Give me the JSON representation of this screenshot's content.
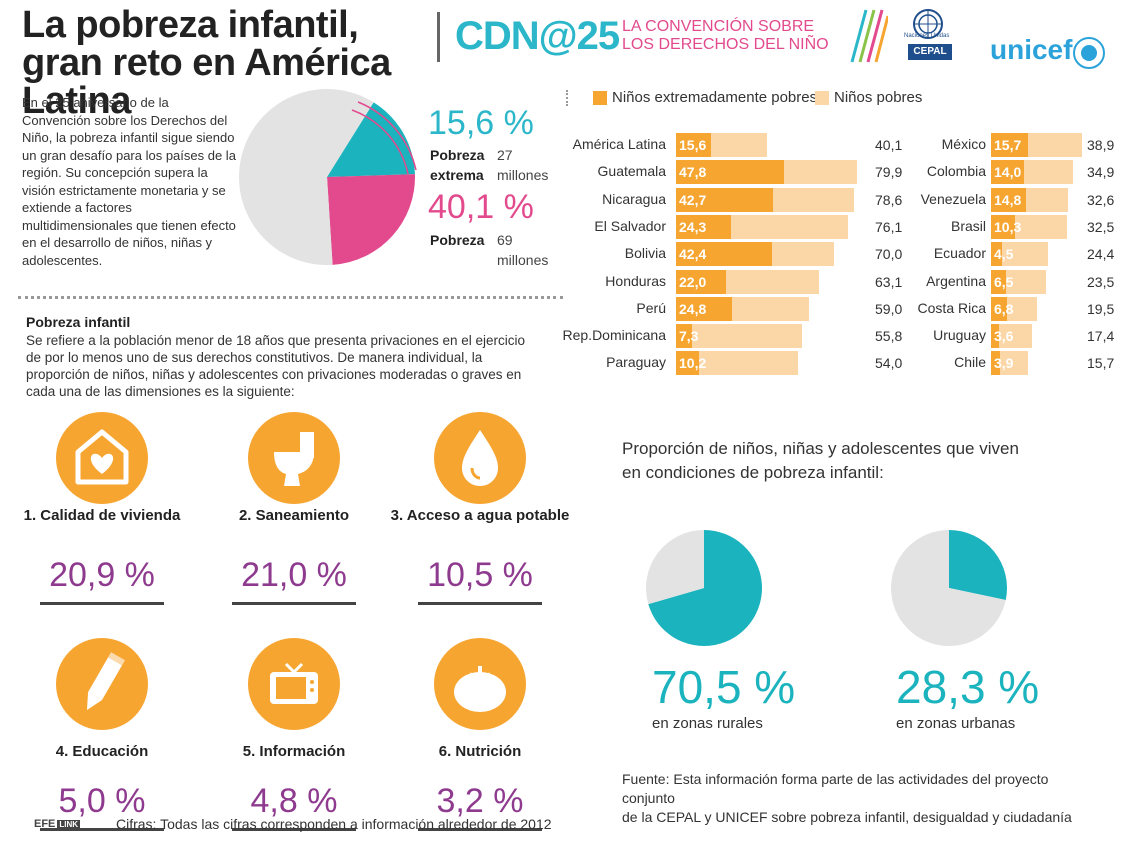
{
  "header": {
    "title": "La pobreza infantil, gran reto en América Latina",
    "cdn_logo": "CDN@25",
    "cdn_subtitle_1": "LA CONVENCIÓN SOBRE",
    "cdn_subtitle_2": "LOS DERECHOS DEL NIÑO",
    "un_small_1": "Naciones Unidas",
    "cepal": "CEPAL",
    "unicef": "unicef"
  },
  "intro": {
    "text": "En el 25 aniversario de la Convención sobre los Derechos del Niño, la pobreza infantil sigue siendo un gran desafío para los países de la región. Su concepción supera la visión estrictamente monetaria y se extiende a factores multidimensionales que tienen efecto en el desarrollo de niños, niñas y adolescentes.",
    "extreme_pct": "15,6 %",
    "extreme_label_1": "Pobreza",
    "extreme_label_2": "extrema",
    "extreme_count_1": "27",
    "extreme_count_2": "millones",
    "poverty_pct": "40,1 %",
    "poverty_label": "Pobreza",
    "poverty_count_1": "69",
    "poverty_count_2": "millones"
  },
  "definition": {
    "title": "Pobreza infantil",
    "text": "Se refiere a la población menor de 18 años que presenta privaciones en el ejercicio de por lo menos uno de sus derechos constitutivos. De manera individual, la proporción de niños, niñas y adolescentes con privaciones moderadas o graves en cada una de las dimensiones es la siguiente:"
  },
  "dimensions": [
    {
      "label": "1. Calidad de vivienda",
      "value": "20,9 %",
      "icon": "house-heart-icon"
    },
    {
      "label": "2. Saneamiento",
      "value": "21,0 %",
      "icon": "toilet-icon"
    },
    {
      "label": "3. Acceso a agua potable",
      "value": "10,5 %",
      "icon": "water-drop-icon"
    },
    {
      "label": "4. Educación",
      "value": "5,0 %",
      "icon": "pencil-icon"
    },
    {
      "label": "5. Información",
      "value": "4,8 %",
      "icon": "tv-icon"
    },
    {
      "label": "6. Nutrición",
      "value": "3,2 %",
      "icon": "tomato-icon"
    }
  ],
  "proportion": {
    "title_1": "Proporción de niños, niñas y adolescentes que viven",
    "title_2": "en condiciones de pobreza infantil:",
    "rural_value": "70,5 %",
    "rural_label": "en zonas rurales",
    "urban_value": "28,3 %",
    "urban_label": "en zonas urbanas"
  },
  "footer": {
    "fuente_1": "Fuente: Esta información forma parte de las actividades del proyecto conjunto",
    "fuente_2": "de la CEPAL y UNICEF sobre pobreza infantil, desigualdad y ciudadanía",
    "efe": "EFE",
    "link": "LINK",
    "cifras": "Cifras: Todas las cifras corresponden a información alrededor de 2012"
  },
  "colors": {
    "orange": "#f6a531",
    "light_orange": "#fbd6a6",
    "teal": "#1bb3bd",
    "pink": "#e24a8d",
    "purple": "#8e3a8e",
    "grey": "#e3e3e3"
  },
  "chart_data": [
    {
      "type": "pie",
      "slices": [
        {
          "name": "Pobreza extrema",
          "value": 15.6,
          "color": "#1bb3bd"
        },
        {
          "name": "Pobreza",
          "value": 24.5,
          "color": "#e24a8d"
        },
        {
          "name": "",
          "value": 59.9,
          "color": "#e3e3e3"
        }
      ]
    },
    {
      "type": "bar",
      "orientation": "horizontal",
      "legend": [
        "Niños extremadamente pobres",
        "Niños pobres"
      ],
      "legend_position": "top",
      "xlim": [
        0,
        80
      ],
      "series_left": {
        "categories": [
          "América Latina",
          "Guatemala",
          "Nicaragua",
          "El Salvador",
          "Bolivia",
          "Honduras",
          "Perú",
          "Rep.Dominicana",
          "Paraguay"
        ],
        "extreme": [
          15.6,
          47.8,
          42.7,
          24.3,
          42.4,
          22.0,
          24.8,
          7.3,
          10.2
        ],
        "extreme_labels": [
          "15,6",
          "47,8",
          "42,7",
          "24,3",
          "42,4",
          "22,0",
          "24,8",
          "7,3",
          "10,2"
        ],
        "poor": [
          40.1,
          79.9,
          78.6,
          76.1,
          70.0,
          63.1,
          59.0,
          55.8,
          54.0
        ],
        "poor_labels": [
          "40,1",
          "79,9",
          "78,6",
          "76,1",
          "70,0",
          "63,1",
          "59,0",
          "55,8",
          "54,0"
        ]
      },
      "series_right": {
        "categories": [
          "México",
          "Colombia",
          "Venezuela",
          "Brasil",
          "Ecuador",
          "Argentina",
          "Costa Rica",
          "Uruguay",
          "Chile"
        ],
        "extreme": [
          15.7,
          14.0,
          14.8,
          10.3,
          4.5,
          6.5,
          6.8,
          3.6,
          3.9
        ],
        "extreme_labels": [
          "15,7",
          "14,0",
          "14,8",
          "10,3",
          "4,5",
          "6,5",
          "6,8",
          "3,6",
          "3,9"
        ],
        "poor": [
          38.9,
          34.9,
          32.6,
          32.5,
          24.4,
          23.5,
          19.5,
          17.4,
          15.7
        ],
        "poor_labels": [
          "38,9",
          "34,9",
          "32,6",
          "32,5",
          "24,4",
          "23,5",
          "19,5",
          "17,4",
          "15,7"
        ]
      }
    },
    {
      "type": "pie",
      "name": "en zonas rurales",
      "slices": [
        {
          "name": "en zonas rurales",
          "value": 70.5,
          "color": "#1bb3bd"
        },
        {
          "name": "",
          "value": 29.5,
          "color": "#e3e3e3"
        }
      ]
    },
    {
      "type": "pie",
      "name": "en zonas urbanas",
      "slices": [
        {
          "name": "en zonas urbanas",
          "value": 28.3,
          "color": "#1bb3bd"
        },
        {
          "name": "",
          "value": 71.7,
          "color": "#e3e3e3"
        }
      ]
    }
  ]
}
